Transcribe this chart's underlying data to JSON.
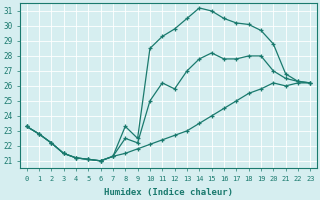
{
  "title": "",
  "xlabel": "Humidex (Indice chaleur)",
  "bg_color": "#d6eef0",
  "line_color": "#1a7a6e",
  "grid_color": "#c0dde0",
  "xlim": [
    -0.5,
    23.5
  ],
  "ylim": [
    20.5,
    31.5
  ],
  "yticks": [
    21,
    22,
    23,
    24,
    25,
    26,
    27,
    28,
    29,
    30,
    31
  ],
  "xticks": [
    0,
    1,
    2,
    3,
    4,
    5,
    6,
    7,
    8,
    9,
    10,
    11,
    12,
    13,
    14,
    15,
    16,
    17,
    18,
    19,
    20,
    21,
    22,
    23
  ],
  "hours": [
    0,
    1,
    2,
    3,
    4,
    5,
    6,
    7,
    8,
    9,
    10,
    11,
    12,
    13,
    14,
    15,
    16,
    17,
    18,
    19,
    20,
    21,
    22,
    23
  ],
  "line_top": [
    23.3,
    22.8,
    22.2,
    21.5,
    21.2,
    21.1,
    21.0,
    21.3,
    23.3,
    22.5,
    28.5,
    29.3,
    29.8,
    30.5,
    31.2,
    31.0,
    30.5,
    30.2,
    30.1,
    29.7,
    28.8,
    26.8,
    26.3,
    26.2
  ],
  "line_mid": [
    23.3,
    22.8,
    22.2,
    21.5,
    21.2,
    21.1,
    21.0,
    21.3,
    22.5,
    22.2,
    25.0,
    26.2,
    25.8,
    27.0,
    27.8,
    28.2,
    27.8,
    27.8,
    28.0,
    28.0,
    27.0,
    26.5,
    26.3,
    26.2
  ],
  "line_bot": [
    23.3,
    22.8,
    22.2,
    21.5,
    21.2,
    21.1,
    21.0,
    21.3,
    21.5,
    21.8,
    22.1,
    22.4,
    22.7,
    23.0,
    23.5,
    24.0,
    24.5,
    25.0,
    25.5,
    25.8,
    26.2,
    26.0,
    26.2,
    26.2
  ]
}
